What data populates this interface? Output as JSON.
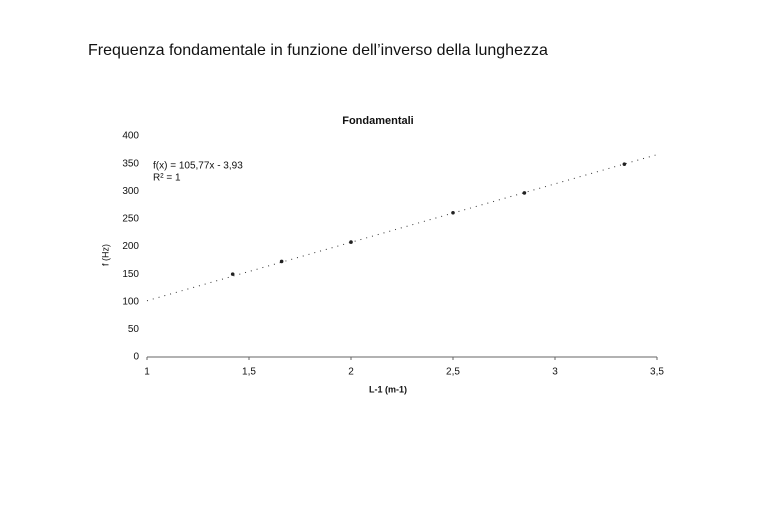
{
  "heading": "Frequenza fondamentale in funzione dell’inverso della lunghezza",
  "chart_data": {
    "type": "scatter",
    "title": "Fondamentali",
    "x_label": "L-1 (m-1)",
    "y_label": "f (Hz)",
    "x": [
      1.42,
      1.66,
      2.0,
      2.5,
      2.85,
      3.34
    ],
    "values": [
      150,
      173,
      208,
      261,
      297,
      349
    ],
    "color": "#222222",
    "xlim": [
      1,
      3.5
    ],
    "xticks": [
      1,
      {
        "value": 1.5,
        "label": "1,5"
      },
      2,
      {
        "value": 2.5,
        "label": "2,5"
      },
      3,
      {
        "value": 3.5,
        "label": "3,5"
      }
    ],
    "ylim": [
      0,
      400
    ],
    "yticks": [
      0,
      50,
      100,
      150,
      200,
      250,
      300,
      350,
      400
    ],
    "grid": false,
    "trendline": {
      "equation": "f(x) = 105,77x - 3,93",
      "r2": "R² = 1",
      "slope": 105.77,
      "intercept": -3.93
    }
  }
}
